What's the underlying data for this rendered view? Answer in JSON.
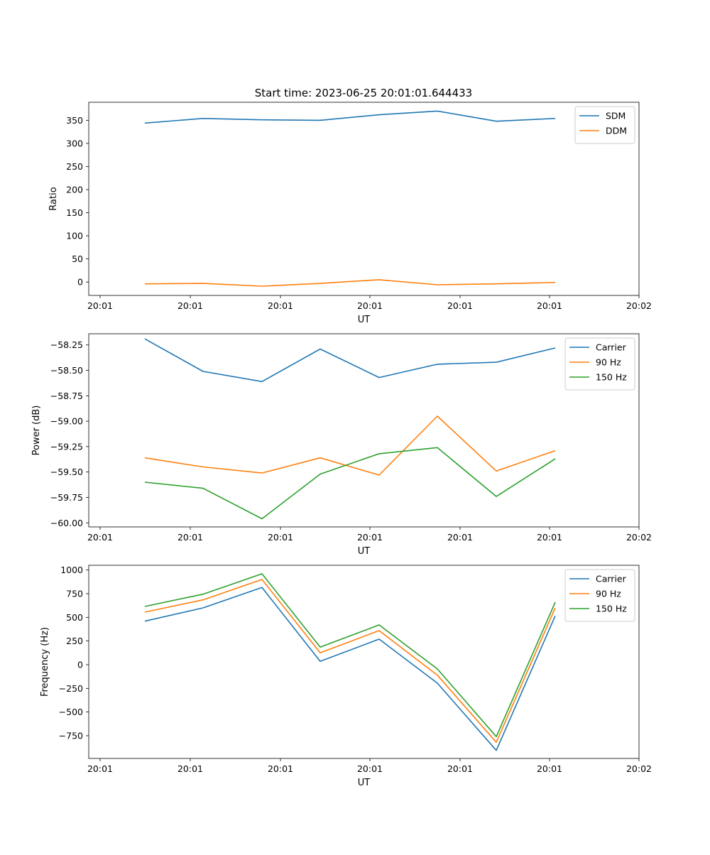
{
  "figure_title": "Start time: 2023-06-25 20:01:01.644433",
  "x_tick_labels": [
    "20:01",
    "20:01",
    "20:01",
    "20:01",
    "20:01",
    "20:01",
    "20:01"
  ],
  "colors": {
    "blue": "#1f77b4",
    "orange": "#ff7f0e",
    "green": "#2ca02c"
  },
  "chart_data": [
    {
      "type": "line",
      "xlabel": "UT",
      "ylabel": "Ratio",
      "ylim": [
        -29,
        389
      ],
      "yticks": [
        0,
        50,
        100,
        150,
        200,
        250,
        300,
        350
      ],
      "ytick_labels": [
        "0",
        "50",
        "100",
        "150",
        "200",
        "250",
        "300",
        "350"
      ],
      "legend": "top-right",
      "series": [
        {
          "name": "SDM",
          "color": "#1f77b4",
          "values": [
            344,
            354,
            351,
            350,
            362,
            370,
            348,
            354
          ]
        },
        {
          "name": "DDM",
          "color": "#ff7f0e",
          "values": [
            -4,
            -3,
            -9,
            -3,
            5,
            -6,
            -4,
            -1
          ]
        }
      ]
    },
    {
      "type": "line",
      "xlabel": "UT",
      "ylabel": "Power (dB)",
      "ylim": [
        -60.04,
        -58.14
      ],
      "yticks": [
        -60.0,
        -59.75,
        -59.5,
        -59.25,
        -59.0,
        -58.75,
        -58.5,
        -58.25
      ],
      "ytick_labels": [
        "−60.00",
        "−59.75",
        "−59.50",
        "−59.25",
        "−59.00",
        "−58.75",
        "−58.50",
        "−58.25"
      ],
      "legend": "top-right",
      "series": [
        {
          "name": "Carrier",
          "color": "#1f77b4",
          "values": [
            -58.19,
            -58.51,
            -58.61,
            -58.29,
            -58.57,
            -58.44,
            -58.42,
            -58.28
          ]
        },
        {
          "name": "90 Hz",
          "color": "#ff7f0e",
          "values": [
            -59.36,
            -59.45,
            -59.51,
            -59.36,
            -59.53,
            -58.95,
            -59.49,
            -59.29
          ]
        },
        {
          "name": "150 Hz",
          "color": "#2ca02c",
          "values": [
            -59.6,
            -59.66,
            -59.96,
            -59.52,
            -59.32,
            -59.26,
            -59.74,
            -59.37
          ]
        }
      ]
    },
    {
      "type": "line",
      "xlabel": "UT",
      "ylabel": "Frequency (Hz)",
      "ylim": [
        -990,
        1050
      ],
      "yticks": [
        -750,
        -500,
        -250,
        0,
        250,
        500,
        750,
        1000
      ],
      "ytick_labels": [
        "−750",
        "−500",
        "−250",
        "0",
        "250",
        "500",
        "750",
        "1000"
      ],
      "legend": "top-right",
      "series": [
        {
          "name": "Carrier",
          "color": "#1f77b4",
          "values": [
            460,
            600,
            815,
            35,
            270,
            -195,
            -905,
            515
          ]
        },
        {
          "name": "90 Hz",
          "color": "#ff7f0e",
          "values": [
            555,
            685,
            900,
            125,
            360,
            -110,
            -820,
            600
          ]
        },
        {
          "name": "150 Hz",
          "color": "#2ca02c",
          "values": [
            615,
            745,
            960,
            185,
            420,
            -45,
            -760,
            660
          ]
        }
      ]
    }
  ]
}
